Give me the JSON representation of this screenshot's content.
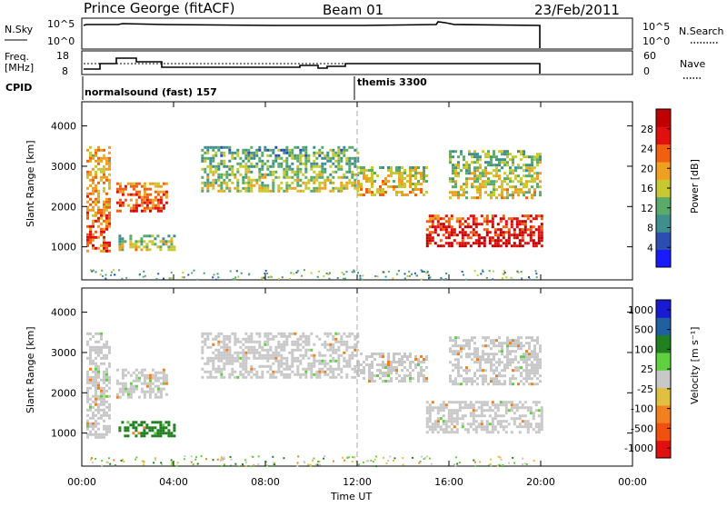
{
  "header": {
    "station": "Prince George (fitACF)",
    "beam": "Beam 01",
    "date": "23/Feb/2011"
  },
  "top_panels": {
    "nsky_label": "N.Sky",
    "nsearch_label": "N.Search",
    "nsky_ticks": [
      "10^5",
      "10^0"
    ],
    "nsky_right_ticks": [
      "10^5",
      "10^0"
    ],
    "freq_label": "Freq.",
    "freq_unit": "[MHz]",
    "freq_ticks": [
      "18",
      "8"
    ],
    "nave_label": "Nave",
    "nave_ticks": [
      "60",
      "0"
    ],
    "cpid_label": "CPID",
    "cpid_modes": [
      {
        "name": "normalsound (fast) 157",
        "start_hour": 0
      },
      {
        "name": "themis 3300",
        "start_hour": 12
      }
    ]
  },
  "colors": {
    "power_scale": [
      "#1a1aff",
      "#2a4fb0",
      "#3f8f8f",
      "#5aaa6a",
      "#c8c832",
      "#f0a020",
      "#f06010",
      "#e01010",
      "#c00000"
    ],
    "velocity_scale": [
      "#1a1ad0",
      "#2060a0",
      "#208020",
      "#60d040",
      "#c8c8c8",
      "#e0c040",
      "#f08020",
      "#f05010",
      "#e01010"
    ],
    "grey": "#c8c8c8"
  },
  "chart_data": [
    {
      "type": "heatmap",
      "title": "",
      "ylabel": "Slant Range [km]",
      "xlabel": "Time UT",
      "x_ticks": [
        "00:00",
        "04:00",
        "08:00",
        "12:00",
        "16:00",
        "20:00",
        "00:00"
      ],
      "y_ticks": [
        "1000",
        "2000",
        "3000",
        "4000"
      ],
      "xlim_hours": [
        0,
        24
      ],
      "ylim_km": [
        180,
        4600
      ],
      "colorbar_label": "Power [dB]",
      "colorbar_ticks": [
        "4",
        "8",
        "12",
        "16",
        "20",
        "24",
        "28"
      ],
      "bands": [
        {
          "t0": 0.2,
          "t1": 1.2,
          "r0": 900,
          "r1": 3500,
          "value": 18
        },
        {
          "t0": 1.5,
          "t1": 3.7,
          "r0": 1900,
          "r1": 2600,
          "value": 20
        },
        {
          "t0": 1.6,
          "t1": 4.0,
          "r0": 900,
          "r1": 1300,
          "value": 12
        },
        {
          "t0": 5.2,
          "t1": 12.0,
          "r0": 2400,
          "r1": 3500,
          "value": 10
        },
        {
          "t0": 12.0,
          "t1": 15.0,
          "r0": 2300,
          "r1": 3000,
          "value": 14
        },
        {
          "t0": 15.0,
          "t1": 20.0,
          "r0": 1000,
          "r1": 1800,
          "value": 24
        },
        {
          "t0": 16.0,
          "t1": 20.0,
          "r0": 2200,
          "r1": 3400,
          "value": 12
        }
      ]
    },
    {
      "type": "heatmap",
      "title": "",
      "ylabel": "Slant Range [km]",
      "xlabel": "Time UT",
      "x_ticks": [
        "00:00",
        "04:00",
        "08:00",
        "12:00",
        "16:00",
        "20:00",
        "00:00"
      ],
      "y_ticks": [
        "1000",
        "2000",
        "3000",
        "4000"
      ],
      "xlim_hours": [
        0,
        24
      ],
      "ylim_km": [
        180,
        4600
      ],
      "colorbar_label": "Velocity [m s⁻¹]",
      "colorbar_ticks": [
        "1000",
        "500",
        "100",
        "25",
        "-25",
        "-100",
        "-500",
        "-1000"
      ],
      "bands": [
        {
          "t0": 0.2,
          "t1": 1.2,
          "r0": 900,
          "r1": 3500,
          "value": 0
        },
        {
          "t0": 1.5,
          "t1": 3.7,
          "r0": 1900,
          "r1": 2600,
          "value": 0
        },
        {
          "t0": 1.6,
          "t1": 4.0,
          "r0": 900,
          "r1": 1300,
          "value": 60
        },
        {
          "t0": 5.2,
          "t1": 12.0,
          "r0": 2400,
          "r1": 3500,
          "value": 0
        },
        {
          "t0": 12.0,
          "t1": 15.0,
          "r0": 2300,
          "r1": 3000,
          "value": 0
        },
        {
          "t0": 15.0,
          "t1": 20.0,
          "r0": 1000,
          "r1": 1800,
          "value": 0
        },
        {
          "t0": 16.0,
          "t1": 20.0,
          "r0": 2200,
          "r1": 3400,
          "value": 0
        }
      ]
    }
  ]
}
